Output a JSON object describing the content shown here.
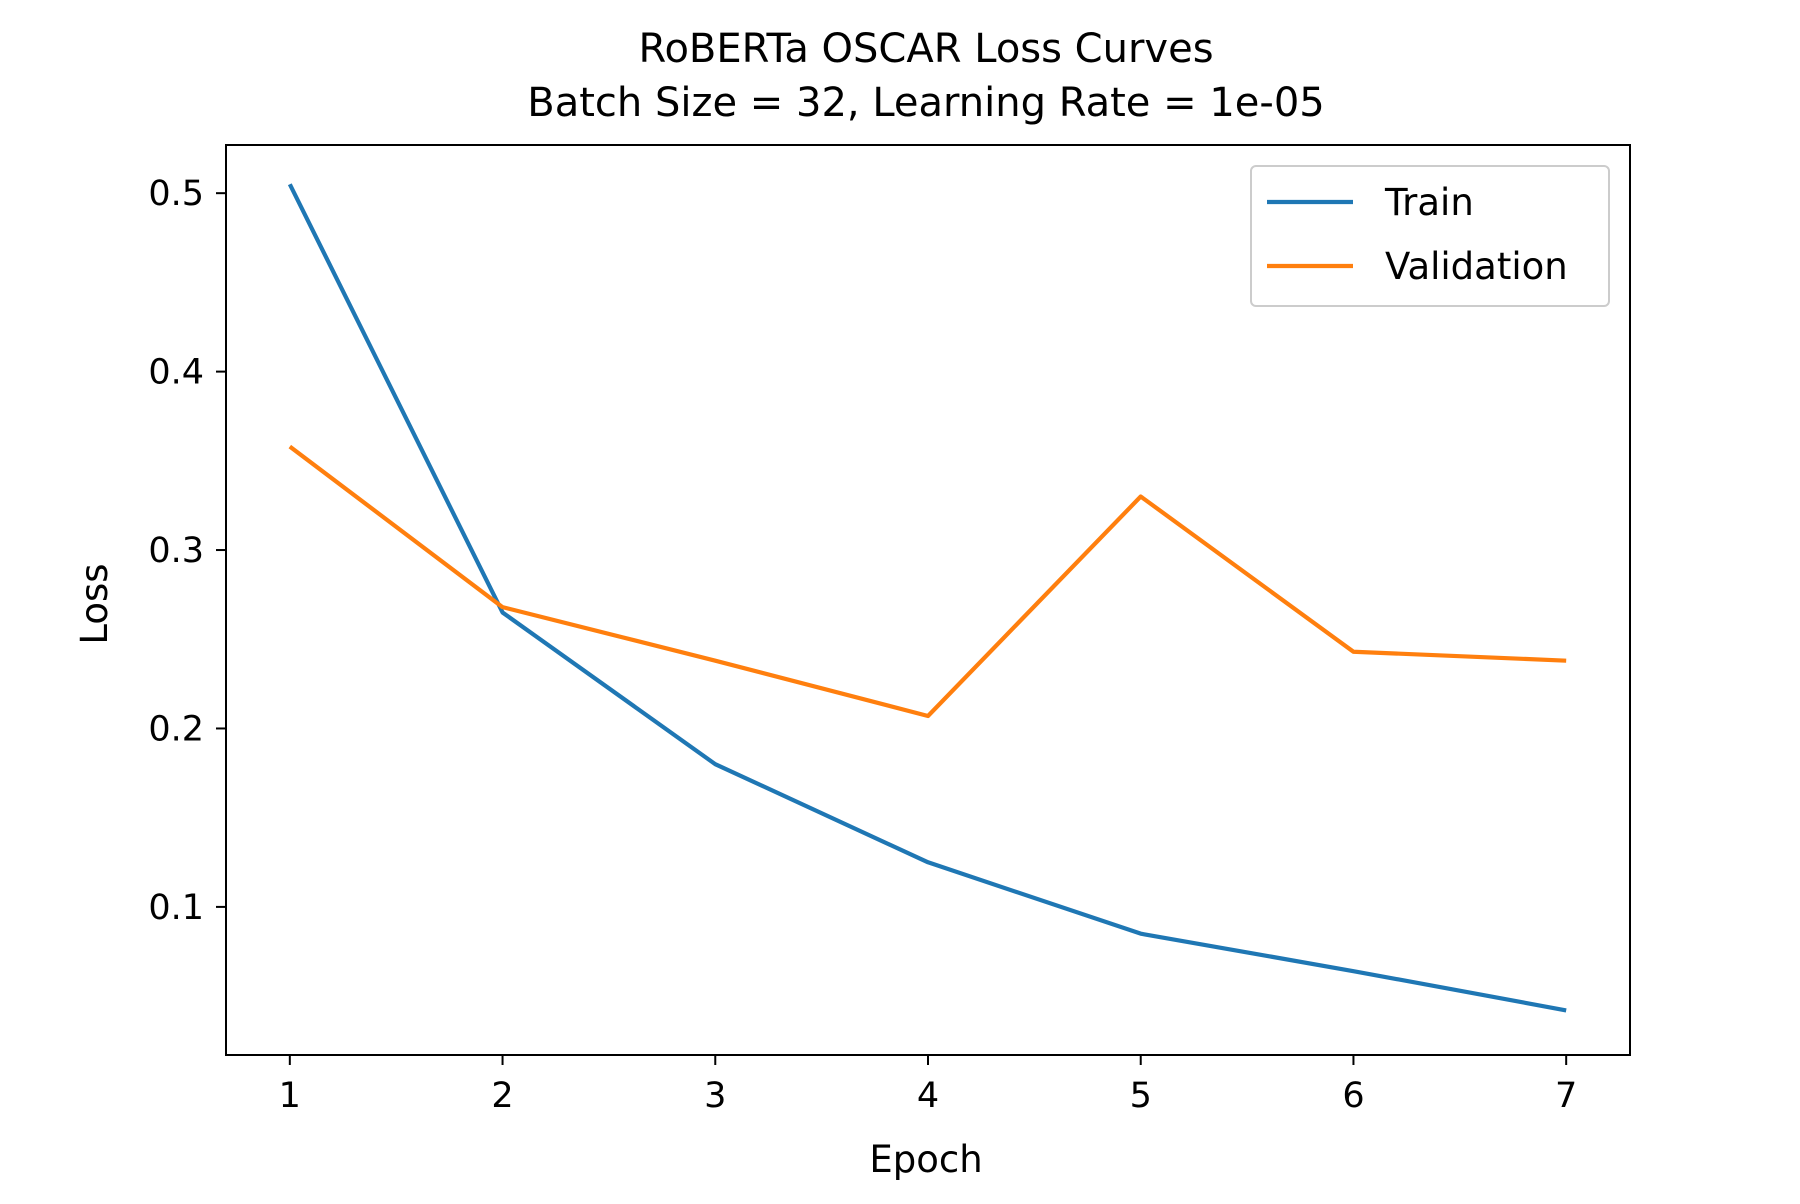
{
  "chart_data": {
    "type": "line",
    "title": "RoBERTa OSCAR Loss Curves",
    "subtitle": "Batch Size = 32, Learning Rate = 1e-05",
    "xlabel": "Epoch",
    "ylabel": "Loss",
    "x": [
      1,
      2,
      3,
      4,
      5,
      6,
      7
    ],
    "xlim": [
      0.7,
      7.3
    ],
    "ylim": [
      0.017,
      0.527
    ],
    "xticks": [
      "1",
      "2",
      "3",
      "4",
      "5",
      "6",
      "7"
    ],
    "yticks": [
      "0.1",
      "0.2",
      "0.3",
      "0.4",
      "0.5"
    ],
    "grid": false,
    "legend_position": "top-right",
    "series": [
      {
        "name": "Train",
        "color": "#1f77b4",
        "values": [
          0.505,
          0.265,
          0.18,
          0.125,
          0.085,
          0.064,
          0.042
        ]
      },
      {
        "name": "Validation",
        "color": "#ff7f0e",
        "values": [
          0.358,
          0.268,
          0.238,
          0.207,
          0.33,
          0.243,
          0.238
        ]
      }
    ]
  }
}
